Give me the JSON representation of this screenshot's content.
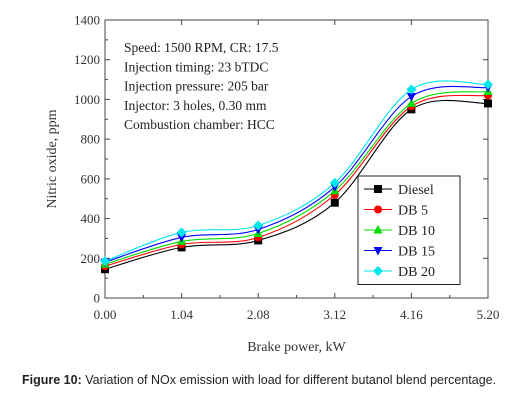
{
  "chart_data": {
    "type": "line",
    "xlabel": "Brake power, kW",
    "ylabel": "Nitric oxide, ppm",
    "x": [
      0.0,
      1.04,
      2.08,
      3.12,
      4.16,
      5.2
    ],
    "x_tick_labels": [
      "0.00",
      "1.04",
      "2.08",
      "3.12",
      "4.16",
      "5.20"
    ],
    "xlim": [
      0,
      5.2
    ],
    "ylim": [
      0,
      1400
    ],
    "y_ticks": [
      0,
      200,
      400,
      600,
      800,
      1000,
      1200,
      1400
    ],
    "y_tick_labels": [
      "0",
      "200",
      "400",
      "600",
      "800",
      "1000",
      "1200",
      "1400"
    ],
    "grid": false,
    "legend_position": "right",
    "annotations": [
      "Speed: 1500 RPM, CR: 17.5",
      "Injection timing: 23 bTDC",
      "Injection pressure: 205 bar",
      "Injector: 3 holes, 0.30 mm",
      "Combustion chamber: HCC"
    ],
    "series": [
      {
        "name": "Diesel",
        "color": "#000000",
        "marker": "square",
        "values": [
          145,
          255,
          290,
          480,
          950,
          980
        ]
      },
      {
        "name": "DB 5",
        "color": "#ff0000",
        "marker": "circle",
        "values": [
          160,
          270,
          305,
          520,
          965,
          1020
        ]
      },
      {
        "name": "DB 10",
        "color": "#00dd00",
        "marker": "triangle-up",
        "values": [
          170,
          285,
          325,
          540,
          980,
          1040
        ]
      },
      {
        "name": "DB 15",
        "color": "#0000ff",
        "marker": "triangle-down",
        "values": [
          180,
          305,
          345,
          560,
          1015,
          1060
        ]
      },
      {
        "name": "DB 20",
        "color": "#00e5ee",
        "marker": "diamond",
        "values": [
          185,
          330,
          365,
          580,
          1050,
          1075
        ]
      }
    ]
  },
  "caption": {
    "label": "Figure 10:",
    "text": " Variation of NOx emission with load for different butanol blend percentage."
  }
}
